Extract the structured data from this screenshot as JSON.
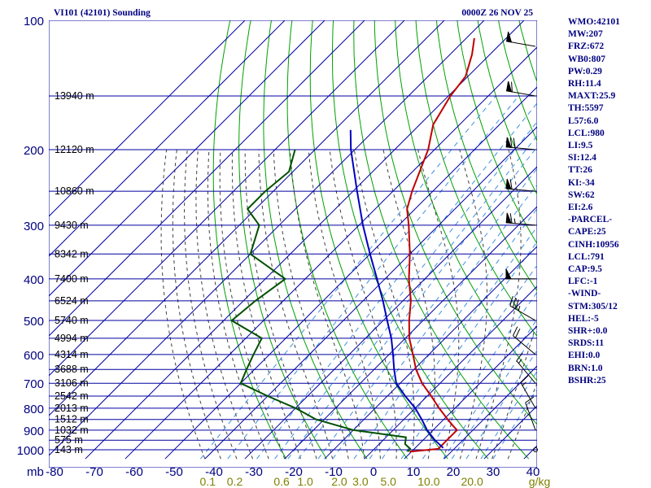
{
  "header": {
    "station": "VI101 (42101) Sounding",
    "time": "0000Z 26 NOV 25"
  },
  "indices": [
    "WMO:42101",
    "MW:207",
    "FRZ:672",
    "WB0:807",
    "PW:0.29",
    "RH:11.4",
    "MAXT:25.9",
    "TH:5597",
    "L57:6.0",
    "LCL:980",
    "LI:9.5",
    "SI:12.4",
    "TT:26",
    "KI:-34",
    "SW:62",
    "EI:2.6",
    "-PARCEL-",
    "CAPE:25",
    "CINH:10956",
    "LCL:791",
    "CAP:9.5",
    "LFC:-1",
    "-WIND-",
    "STM:305/12",
    "HEL:-5",
    "SHR+:0.0",
    "SRDS:11",
    "EHI:0.0",
    "BRN:1.0",
    "BSHR:25"
  ],
  "colors": {
    "isobar_isotherm": "#0000a0",
    "dry_adiabat": "#00a000",
    "moist_adiabat": "#404040",
    "mixing_ratio": "#4090e0",
    "temperature": "#c00000",
    "dewpoint": "#005000",
    "parcel": "#0000c0",
    "label": "#000080",
    "temp_axis": "#000080",
    "mixing_axis": "#808000"
  },
  "chart_data": {
    "type": "line",
    "xlabel_unit": "mb",
    "temp_axis": {
      "ticks": [
        -80,
        -70,
        -60,
        -50,
        -40,
        -30,
        -20,
        -10,
        0,
        10,
        20,
        30,
        40
      ],
      "labels": [
        "-80",
        "-70",
        "-60",
        "-50",
        "-40",
        "-30",
        "-20",
        "-10",
        "0",
        "10",
        "20",
        "30",
        "40"
      ]
    },
    "pressure_axis": {
      "scale": "log",
      "ticks": [
        100,
        200,
        300,
        400,
        500,
        600,
        700,
        800,
        900,
        1000
      ],
      "labels": [
        "100",
        "200",
        "300",
        "400",
        "500",
        "600",
        "700",
        "800",
        "900",
        "1000"
      ]
    },
    "mixing_ratio_labels": [
      "0.1",
      "0.2",
      "0.6",
      "1.0",
      "2.0",
      "3.0",
      "5.0",
      "10.0",
      "20.0",
      "g/kg"
    ],
    "mixing_ratio_values": [
      0.1,
      0.2,
      0.6,
      1.0,
      2.0,
      3.0,
      5.0,
      10.0,
      20.0
    ],
    "height_levels": [
      {
        "p": 150,
        "label": "13940 m"
      },
      {
        "p": 200,
        "label": "12120 m"
      },
      {
        "p": 250,
        "label": "10860 m"
      },
      {
        "p": 300,
        "label": "9430 m"
      },
      {
        "p": 350,
        "label": "8342 m"
      },
      {
        "p": 400,
        "label": "7400 m"
      },
      {
        "p": 450,
        "label": "6524 m"
      },
      {
        "p": 500,
        "label": "5740 m"
      },
      {
        "p": 550,
        "label": "4994 m"
      },
      {
        "p": 600,
        "label": "4314 m"
      },
      {
        "p": 650,
        "label": "3688 m"
      },
      {
        "p": 700,
        "label": "3106 m"
      },
      {
        "p": 750,
        "label": "2542 m"
      },
      {
        "p": 800,
        "label": "2013 m"
      },
      {
        "p": 850,
        "label": "1512 m"
      },
      {
        "p": 900,
        "label": "1032 m"
      },
      {
        "p": 950,
        "label": "575 m"
      },
      {
        "p": 1000,
        "label": "143 m"
      }
    ],
    "series": [
      {
        "key": "temperature",
        "values": [
          [
            1010,
            9.5
          ],
          [
            995,
            16
          ],
          [
            925,
            16
          ],
          [
            900,
            16
          ],
          [
            880,
            14
          ],
          [
            850,
            11
          ],
          [
            800,
            6
          ],
          [
            750,
            1
          ],
          [
            700,
            -4.5
          ],
          [
            650,
            -9.5
          ],
          [
            600,
            -14
          ],
          [
            550,
            -19
          ],
          [
            500,
            -23.5
          ],
          [
            450,
            -28
          ],
          [
            400,
            -34
          ],
          [
            350,
            -40
          ],
          [
            300,
            -47.5
          ],
          [
            275,
            -52
          ],
          [
            250,
            -55.2
          ],
          [
            200,
            -61.6
          ],
          [
            175,
            -66.6
          ],
          [
            150,
            -69.5
          ],
          [
            135,
            -70.6
          ],
          [
            120,
            -74.5
          ],
          [
            110,
            -78
          ]
        ]
      },
      {
        "key": "dewpoint",
        "values": [
          [
            1010,
            9
          ],
          [
            995,
            9
          ],
          [
            970,
            6.5
          ],
          [
            935,
            5
          ],
          [
            900,
            -10
          ],
          [
            850,
            -22
          ],
          [
            800,
            -30
          ],
          [
            750,
            -40
          ],
          [
            700,
            -50
          ],
          [
            650,
            -52
          ],
          [
            600,
            -54
          ],
          [
            550,
            -56
          ],
          [
            500,
            -68
          ],
          [
            450,
            -67
          ],
          [
            400,
            -65
          ],
          [
            350,
            -80
          ],
          [
            300,
            -85
          ],
          [
            275,
            -92
          ],
          [
            250,
            -92
          ],
          [
            225,
            -91
          ],
          [
            200,
            -95
          ]
        ]
      },
      {
        "key": "parcel",
        "values": [
          [
            990,
            17
          ],
          [
            950,
            13
          ],
          [
            900,
            8.5
          ],
          [
            850,
            4.5
          ],
          [
            800,
            0
          ],
          [
            750,
            -5.5
          ],
          [
            700,
            -11
          ],
          [
            650,
            -15
          ],
          [
            600,
            -19
          ],
          [
            550,
            -23.5
          ],
          [
            500,
            -29
          ],
          [
            450,
            -35
          ],
          [
            400,
            -42
          ],
          [
            350,
            -50
          ],
          [
            300,
            -59
          ],
          [
            250,
            -69
          ],
          [
            200,
            -81
          ],
          [
            180,
            -86
          ]
        ]
      }
    ],
    "wind_barbs": [
      {
        "p": 115,
        "dir": 280,
        "speed": 50
      },
      {
        "p": 150,
        "dir": 280,
        "speed": 60
      },
      {
        "p": 200,
        "dir": 275,
        "speed": 70
      },
      {
        "p": 250,
        "dir": 275,
        "speed": 60
      },
      {
        "p": 300,
        "dir": 275,
        "speed": 65
      },
      {
        "p": 400,
        "dir": 270,
        "speed": 50
      },
      {
        "p": 500,
        "dir": 300,
        "speed": 35
      },
      {
        "p": 600,
        "dir": 310,
        "speed": 20
      },
      {
        "p": 700,
        "dir": 320,
        "speed": 15
      },
      {
        "p": 800,
        "dir": 330,
        "speed": 15
      },
      {
        "p": 900,
        "dir": 340,
        "speed": 10
      },
      {
        "p": 1000,
        "dir": 0,
        "speed": 0
      }
    ]
  }
}
